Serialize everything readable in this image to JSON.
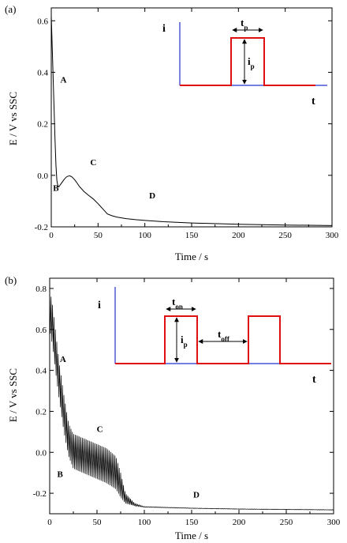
{
  "chart_data": [
    {
      "type": "line",
      "panel_label": "(a)",
      "xlabel": "Time / s",
      "ylabel": "E / V vs SSC",
      "xlim": [
        0,
        300
      ],
      "ylim": [
        -0.2,
        0.65
      ],
      "xticks": [
        "0",
        "50",
        "100",
        "150",
        "200",
        "250",
        "300"
      ],
      "yticks": [
        "-0.2",
        "0.0",
        "0.2",
        "0.4",
        "0.6"
      ],
      "x": [
        0,
        1,
        2,
        3,
        4,
        5,
        6,
        7,
        8,
        9,
        10,
        12,
        14,
        16,
        18,
        20,
        22,
        24,
        26,
        28,
        30,
        35,
        40,
        45,
        50,
        55,
        60,
        65,
        70,
        80,
        90,
        100,
        120,
        150,
        200,
        250,
        300
      ],
      "y": [
        0.62,
        0.5,
        0.38,
        0.26,
        0.14,
        0.04,
        -0.02,
        -0.04,
        -0.045,
        -0.04,
        -0.035,
        -0.025,
        -0.015,
        -0.007,
        -0.003,
        -0.002,
        -0.006,
        -0.013,
        -0.022,
        -0.032,
        -0.043,
        -0.063,
        -0.078,
        -0.092,
        -0.11,
        -0.13,
        -0.15,
        -0.157,
        -0.162,
        -0.168,
        -0.172,
        -0.175,
        -0.18,
        -0.185,
        -0.19,
        -0.193,
        -0.195
      ],
      "annotations": [
        {
          "text": "A",
          "x": 13,
          "y": 0.36
        },
        {
          "text": "B",
          "x": 5,
          "y": -0.06
        },
        {
          "text": "C",
          "x": 45,
          "y": 0.04
        },
        {
          "text": "D",
          "x": 108,
          "y": -0.09
        }
      ],
      "inset": {
        "i_label": "i",
        "t_label": "t",
        "tp_label": "tp",
        "ip_label": "ip"
      }
    },
    {
      "type": "line",
      "panel_label": "(b)",
      "xlabel": "Time / s",
      "ylabel": "E / V vs SSC",
      "xlim": [
        0,
        300
      ],
      "ylim": [
        -0.3,
        0.85
      ],
      "xticks": [
        "0",
        "50",
        "100",
        "150",
        "200",
        "250",
        "300"
      ],
      "yticks": [
        "-0.2",
        "0.0",
        "0.2",
        "0.4",
        "0.6",
        "0.8"
      ],
      "envelope_x": [
        0,
        3,
        6,
        10,
        15,
        20,
        25,
        30,
        40,
        50,
        60,
        70,
        75,
        80,
        90,
        100,
        150,
        200,
        250,
        300
      ],
      "envelope_upper": [
        0.8,
        0.72,
        0.6,
        0.44,
        0.28,
        0.14,
        0.09,
        0.08,
        0.06,
        0.04,
        0.02,
        -0.02,
        -0.1,
        -0.2,
        -0.25,
        -0.265,
        -0.272,
        -0.276,
        -0.278,
        -0.28
      ],
      "envelope_lower": [
        0.6,
        0.52,
        0.4,
        0.26,
        0.1,
        -0.02,
        -0.08,
        -0.09,
        -0.11,
        -0.13,
        -0.15,
        -0.18,
        -0.22,
        -0.25,
        -0.262,
        -0.268,
        -0.274,
        -0.278,
        -0.28,
        -0.282
      ],
      "annotations": [
        {
          "text": "A",
          "x": 14,
          "y": 0.44
        },
        {
          "text": "B",
          "x": 11,
          "y": -0.12
        },
        {
          "text": "C",
          "x": 53,
          "y": 0.1
        },
        {
          "text": "D",
          "x": 155,
          "y": -0.22
        }
      ],
      "inset": {
        "i_label": "i",
        "t_label": "t",
        "ton_label": "ton",
        "toff_label": "toff",
        "ip_label": "ip"
      }
    }
  ]
}
